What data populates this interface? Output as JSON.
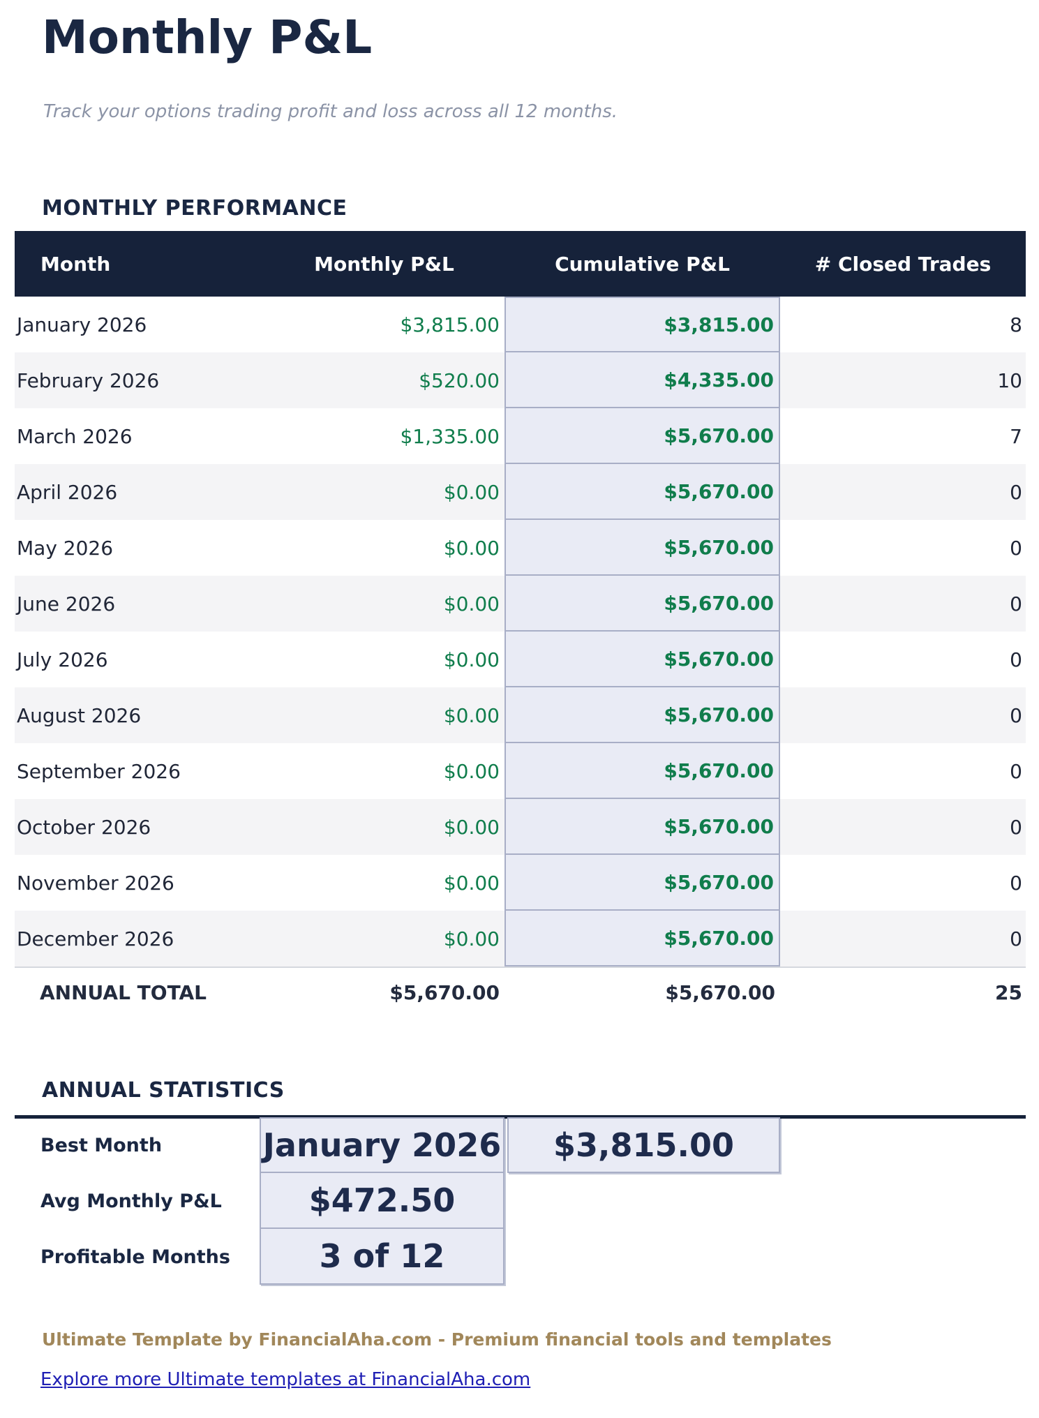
{
  "page": {
    "title": "Monthly P&L",
    "subtitle": "Track your options trading profit and loss across all 12 months."
  },
  "performance": {
    "heading": "MONTHLY PERFORMANCE",
    "columns": [
      "Month",
      "Monthly P&L",
      "Cumulative P&L",
      "# Closed Trades"
    ],
    "rows": [
      {
        "month": "January 2026",
        "monthly": "$3,815.00",
        "cumulative": "$3,815.00",
        "trades": "8"
      },
      {
        "month": "February 2026",
        "monthly": "$520.00",
        "cumulative": "$4,335.00",
        "trades": "10"
      },
      {
        "month": "March 2026",
        "monthly": "$1,335.00",
        "cumulative": "$5,670.00",
        "trades": "7"
      },
      {
        "month": "April 2026",
        "monthly": "$0.00",
        "cumulative": "$5,670.00",
        "trades": "0"
      },
      {
        "month": "May 2026",
        "monthly": "$0.00",
        "cumulative": "$5,670.00",
        "trades": "0"
      },
      {
        "month": "June 2026",
        "monthly": "$0.00",
        "cumulative": "$5,670.00",
        "trades": "0"
      },
      {
        "month": "July 2026",
        "monthly": "$0.00",
        "cumulative": "$5,670.00",
        "trades": "0"
      },
      {
        "month": "August 2026",
        "monthly": "$0.00",
        "cumulative": "$5,670.00",
        "trades": "0"
      },
      {
        "month": "September 2026",
        "monthly": "$0.00",
        "cumulative": "$5,670.00",
        "trades": "0"
      },
      {
        "month": "October 2026",
        "monthly": "$0.00",
        "cumulative": "$5,670.00",
        "trades": "0"
      },
      {
        "month": "November 2026",
        "monthly": "$0.00",
        "cumulative": "$5,670.00",
        "trades": "0"
      },
      {
        "month": "December 2026",
        "monthly": "$0.00",
        "cumulative": "$5,670.00",
        "trades": "0"
      }
    ],
    "total": {
      "label": "ANNUAL TOTAL",
      "monthly": "$5,670.00",
      "cumulative": "$5,670.00",
      "trades": "25"
    }
  },
  "statistics": {
    "heading": "ANNUAL STATISTICS",
    "rows": [
      {
        "label": "Best Month",
        "value": "January 2026",
        "value2": "$3,815.00"
      },
      {
        "label": "Avg Monthly P&L",
        "value": "$472.50"
      },
      {
        "label": "Profitable Months",
        "value": "3 of 12"
      }
    ]
  },
  "footer": {
    "branding": "Ultimate Template by FinancialAha.com - Premium financial tools and templates",
    "link": "Explore more Ultimate templates at FinancialAha.com"
  },
  "colors": {
    "navy": "#16223a",
    "heading": "#1a2742",
    "text": "#202637",
    "subtitle": "#8b93a6",
    "green": "#107d4c",
    "row-alt": "#f4f4f6",
    "box-bg": "#e9ebf5",
    "box-border": "#a8aec6",
    "total-border": "#d5d8de",
    "brown": "#a1875a",
    "link": "#1e1eb4"
  }
}
